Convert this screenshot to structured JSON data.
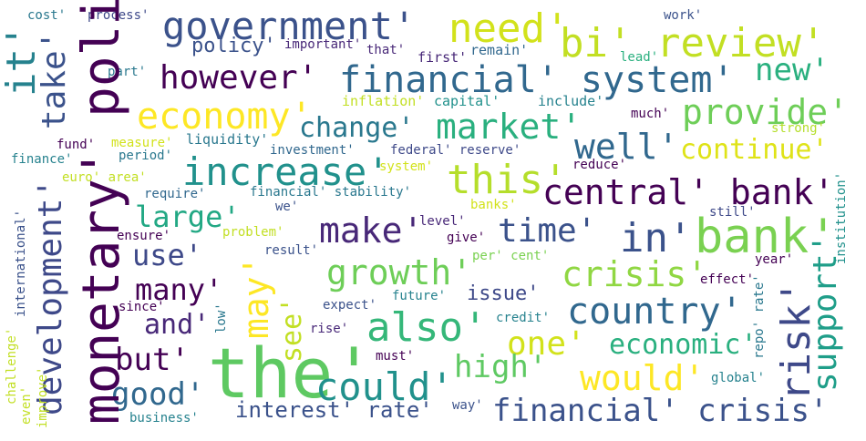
{
  "words": [
    {
      "text": "the'",
      "color": "#5ec962"
    },
    {
      "text": "bank'",
      "color": "#7ad151"
    },
    {
      "text": "monetary' policy'",
      "color": "#440154"
    },
    {
      "text": "financial' system'",
      "color": "#31688e"
    },
    {
      "text": "bi' review'",
      "color": "#c2df23"
    },
    {
      "text": "central' bank'",
      "color": "#440154"
    },
    {
      "text": "government'",
      "color": "#3b528b"
    },
    {
      "text": "however'",
      "color": "#440154"
    },
    {
      "text": "increase'",
      "color": "#21918c"
    },
    {
      "text": "financial' crisis'",
      "color": "#3b528b"
    },
    {
      "text": "need'",
      "color": "#d2e21b"
    },
    {
      "text": "this'",
      "color": "#b5de2b"
    },
    {
      "text": "economy'",
      "color": "#fde725"
    },
    {
      "text": "in'",
      "color": "#3b528b"
    },
    {
      "text": "crisis'",
      "color": "#90d743"
    },
    {
      "text": "risk'",
      "color": "#3e4989"
    },
    {
      "text": "country'",
      "color": "#31688e"
    },
    {
      "text": "growth'",
      "color": "#6ece58"
    },
    {
      "text": "also'",
      "color": "#35b779"
    },
    {
      "text": "would'",
      "color": "#fde725"
    },
    {
      "text": "could'",
      "color": "#21918c"
    },
    {
      "text": "development'",
      "color": "#3e4989"
    },
    {
      "text": "market'",
      "color": "#2ab07f"
    },
    {
      "text": "well'",
      "color": "#31688e"
    },
    {
      "text": "provide'",
      "color": "#6ece58"
    },
    {
      "text": "new'",
      "color": "#2ab07f"
    },
    {
      "text": "it'",
      "color": "#26828e"
    },
    {
      "text": "take'",
      "color": "#3b528b"
    },
    {
      "text": "make'",
      "color": "#482878"
    },
    {
      "text": "time'",
      "color": "#3b528b"
    },
    {
      "text": "change'",
      "color": "#2a788e"
    },
    {
      "text": "continue'",
      "color": "#dfe318"
    },
    {
      "text": "support'",
      "color": "#1f9e89"
    },
    {
      "text": "may'",
      "color": "#fde725"
    },
    {
      "text": "large'",
      "color": "#22a884"
    },
    {
      "text": "use'",
      "color": "#3e4989"
    },
    {
      "text": "many'",
      "color": "#440154"
    },
    {
      "text": "see'",
      "color": "#c2df23"
    },
    {
      "text": "one'",
      "color": "#d2e21b"
    },
    {
      "text": "economic'",
      "color": "#2ab07f"
    },
    {
      "text": "high'",
      "color": "#5ec962"
    },
    {
      "text": "good'",
      "color": "#31688e"
    },
    {
      "text": "but'",
      "color": "#440154"
    },
    {
      "text": "and'",
      "color": "#482878"
    },
    {
      "text": "interest' rate'",
      "color": "#3b528b"
    },
    {
      "text": "issue'",
      "color": "#3e4989"
    },
    {
      "text": "policy'",
      "color": "#3b528b"
    },
    {
      "text": "important'",
      "color": "#482878"
    },
    {
      "text": "that'",
      "color": "#482878"
    },
    {
      "text": "first'",
      "color": "#482878"
    },
    {
      "text": "remain'",
      "color": "#31688e"
    },
    {
      "text": "inflation'",
      "color": "#c2df23"
    },
    {
      "text": "capital'",
      "color": "#21918c"
    },
    {
      "text": "include'",
      "color": "#26828e"
    },
    {
      "text": "much'",
      "color": "#440154"
    },
    {
      "text": "strong'",
      "color": "#b5de2b"
    },
    {
      "text": "liquidity'",
      "color": "#2a788e"
    },
    {
      "text": "investment'",
      "color": "#31688e"
    },
    {
      "text": "federal' reserve'",
      "color": "#3e4989"
    },
    {
      "text": "measure'",
      "color": "#d2e21b"
    },
    {
      "text": "period'",
      "color": "#2a788e"
    },
    {
      "text": "system'",
      "color": "#d2e21b"
    },
    {
      "text": "reduce'",
      "color": "#440154"
    },
    {
      "text": "fund'",
      "color": "#440154"
    },
    {
      "text": "finance'",
      "color": "#26828e"
    },
    {
      "text": "euro' area'",
      "color": "#c2df23"
    },
    {
      "text": "require'",
      "color": "#31688e"
    },
    {
      "text": "financial' stability'",
      "color": "#2a788e"
    },
    {
      "text": "we'",
      "color": "#3b528b"
    },
    {
      "text": "banks'",
      "color": "#d2e21b"
    },
    {
      "text": "still'",
      "color": "#3e4989"
    },
    {
      "text": "level'",
      "color": "#482878"
    },
    {
      "text": "give'",
      "color": "#440154"
    },
    {
      "text": "ensure'",
      "color": "#440154"
    },
    {
      "text": "problem'",
      "color": "#c2df23"
    },
    {
      "text": "result'",
      "color": "#3b528b"
    },
    {
      "text": "per' cent'",
      "color": "#7ad151"
    },
    {
      "text": "year'",
      "color": "#440154"
    },
    {
      "text": "effect'",
      "color": "#440154"
    },
    {
      "text": "cost'",
      "color": "#2a788e"
    },
    {
      "text": "process'",
      "color": "#3e4989"
    },
    {
      "text": "work'",
      "color": "#3b528b"
    },
    {
      "text": "lead'",
      "color": "#2ab07f"
    },
    {
      "text": "part'",
      "color": "#2a788e"
    },
    {
      "text": "expect'",
      "color": "#3b528b"
    },
    {
      "text": "future'",
      "color": "#26828e"
    },
    {
      "text": "since'",
      "color": "#440154"
    },
    {
      "text": "low'",
      "color": "#2a788e"
    },
    {
      "text": "credit'",
      "color": "#26828e"
    },
    {
      "text": "rise'",
      "color": "#482878"
    },
    {
      "text": "must'",
      "color": "#440154"
    },
    {
      "text": "way'",
      "color": "#3b528b"
    },
    {
      "text": "global'",
      "color": "#26828e"
    },
    {
      "text": "business'",
      "color": "#26828e"
    },
    {
      "text": "challenge'",
      "color": "#c2df23"
    },
    {
      "text": "international'",
      "color": "#3b528b"
    },
    {
      "text": "improve'",
      "color": "#c2df23"
    },
    {
      "text": "even'",
      "color": "#c2df23"
    },
    {
      "text": "institution'",
      "color": "#21918c"
    },
    {
      "text": "repo' rate'",
      "color": "#2a788e"
    }
  ]
}
